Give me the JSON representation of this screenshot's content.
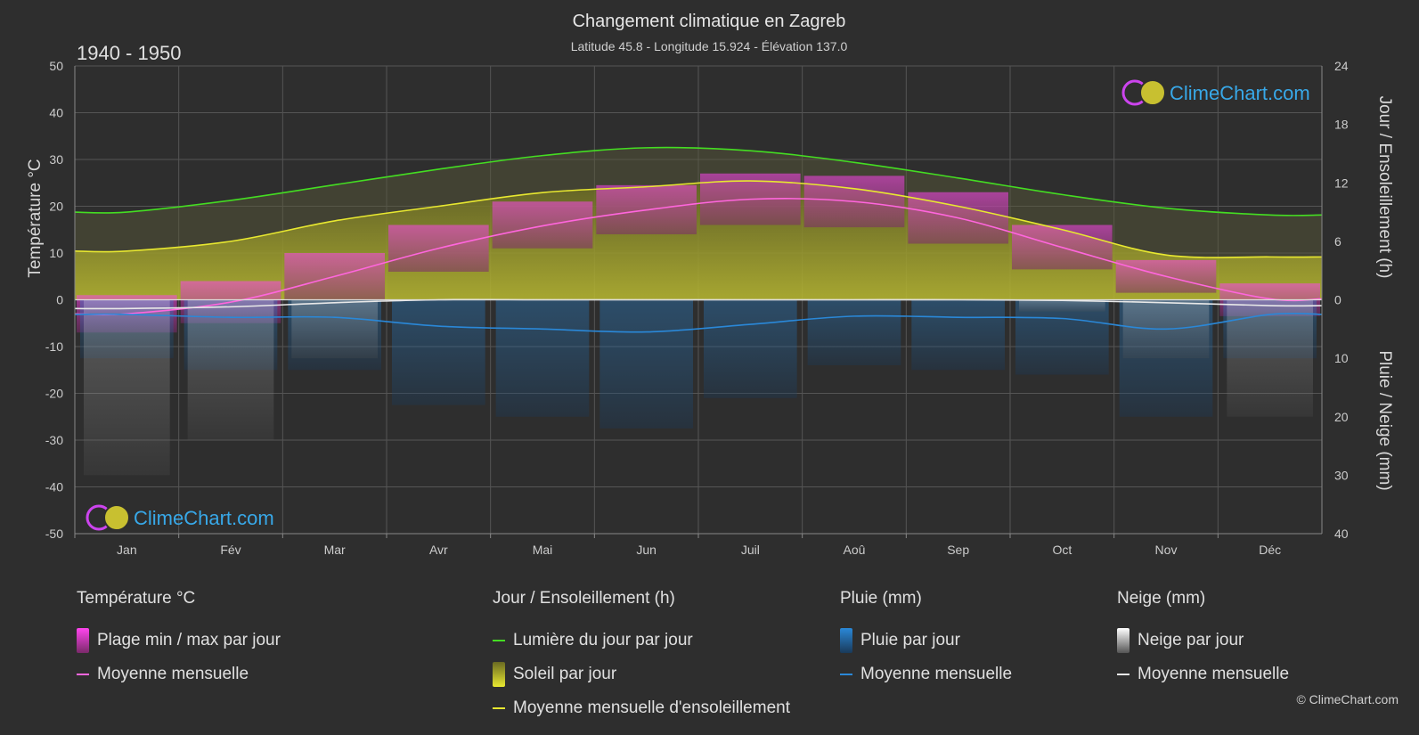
{
  "header": {
    "title": "Changement climatique en Zagreb",
    "subtitle": "Latitude 45.8 - Longitude 15.924 - Élévation 137.0",
    "period": "1940 - 1950"
  },
  "logo": {
    "text": "ClimeChart.com"
  },
  "copyright": "© ClimeChart.com",
  "colors": {
    "background": "#2e2e2e",
    "daylight": "#44dd22",
    "sunshine_mean": "#e8e830",
    "sunshine_fill": "#9a9a2a",
    "temp_mean": "#ff66dd",
    "temp_range": "#d040b0",
    "rain": "#2a88d8",
    "snow": "#e8e8e8"
  },
  "chart_data": {
    "type": "area",
    "months": [
      "Jan",
      "Fév",
      "Mar",
      "Avr",
      "Mai",
      "Jun",
      "Juil",
      "Aoû",
      "Sep",
      "Oct",
      "Nov",
      "Déc"
    ],
    "axes": {
      "left": {
        "label": "Température °C",
        "min": -50,
        "max": 50,
        "ticks": [
          50,
          40,
          30,
          20,
          10,
          0,
          -10,
          -20,
          -30,
          -40,
          -50
        ]
      },
      "right_top": {
        "label": "Jour / Ensoleillement (h)",
        "min": 0,
        "max": 24,
        "ticks": [
          24,
          18,
          12,
          6,
          0
        ]
      },
      "right_bottom": {
        "label": "Pluie / Neige (mm)",
        "min": 0,
        "max": 40,
        "ticks": [
          0,
          10,
          20,
          30,
          40
        ]
      }
    },
    "series": [
      {
        "name": "Lumière du jour par jour",
        "unit": "h",
        "values": [
          9.0,
          10.2,
          11.8,
          13.4,
          14.8,
          15.6,
          15.3,
          14.1,
          12.5,
          10.8,
          9.4,
          8.7
        ]
      },
      {
        "name": "Moyenne mensuelle d'ensoleillement",
        "unit": "h",
        "values": [
          5.0,
          6.0,
          8.1,
          9.6,
          11.0,
          11.6,
          12.2,
          11.4,
          9.6,
          7.2,
          4.6,
          4.4
        ]
      },
      {
        "name": "Moyenne mensuelle",
        "group": "Température °C",
        "unit": "°C",
        "values": [
          -3.0,
          -0.5,
          5.0,
          11.0,
          15.8,
          19.2,
          21.5,
          21.0,
          17.5,
          11.2,
          5.0,
          0.2
        ]
      },
      {
        "name": "Plage min / max par jour",
        "group": "Température °C",
        "unit": "°C",
        "min": [
          -7.0,
          -5.0,
          0.0,
          6.0,
          11.0,
          14.0,
          16.0,
          15.5,
          12.0,
          6.5,
          1.5,
          -3.5
        ],
        "max": [
          1.0,
          4.0,
          10.0,
          16.0,
          21.0,
          24.5,
          27.0,
          26.5,
          23.0,
          16.0,
          8.5,
          3.5
        ]
      },
      {
        "name": "Moyenne mensuelle",
        "group": "Pluie (mm)",
        "unit": "mm",
        "values": [
          2.5,
          3.0,
          3.0,
          4.5,
          5.0,
          5.5,
          4.2,
          2.8,
          3.0,
          3.2,
          5.0,
          2.5
        ]
      },
      {
        "name": "Moyenne mensuelle",
        "group": "Neige (mm)",
        "unit": "mm",
        "values": [
          1.5,
          1.2,
          0.5,
          0.0,
          0.0,
          0.0,
          0.0,
          0.0,
          0.0,
          0.1,
          0.5,
          1.0
        ]
      }
    ],
    "grid": true
  },
  "legend": {
    "temperature": {
      "title": "Température °C",
      "items": [
        "Plage min / max par jour",
        "Moyenne mensuelle"
      ]
    },
    "sun": {
      "title": "Jour / Ensoleillement (h)",
      "items": [
        "Lumière du jour par jour",
        "Soleil par jour",
        "Moyenne mensuelle d'ensoleillement"
      ]
    },
    "rain": {
      "title": "Pluie (mm)",
      "items": [
        "Pluie par jour",
        "Moyenne mensuelle"
      ]
    },
    "snow": {
      "title": "Neige (mm)",
      "items": [
        "Neige par jour",
        "Moyenne mensuelle"
      ]
    }
  }
}
